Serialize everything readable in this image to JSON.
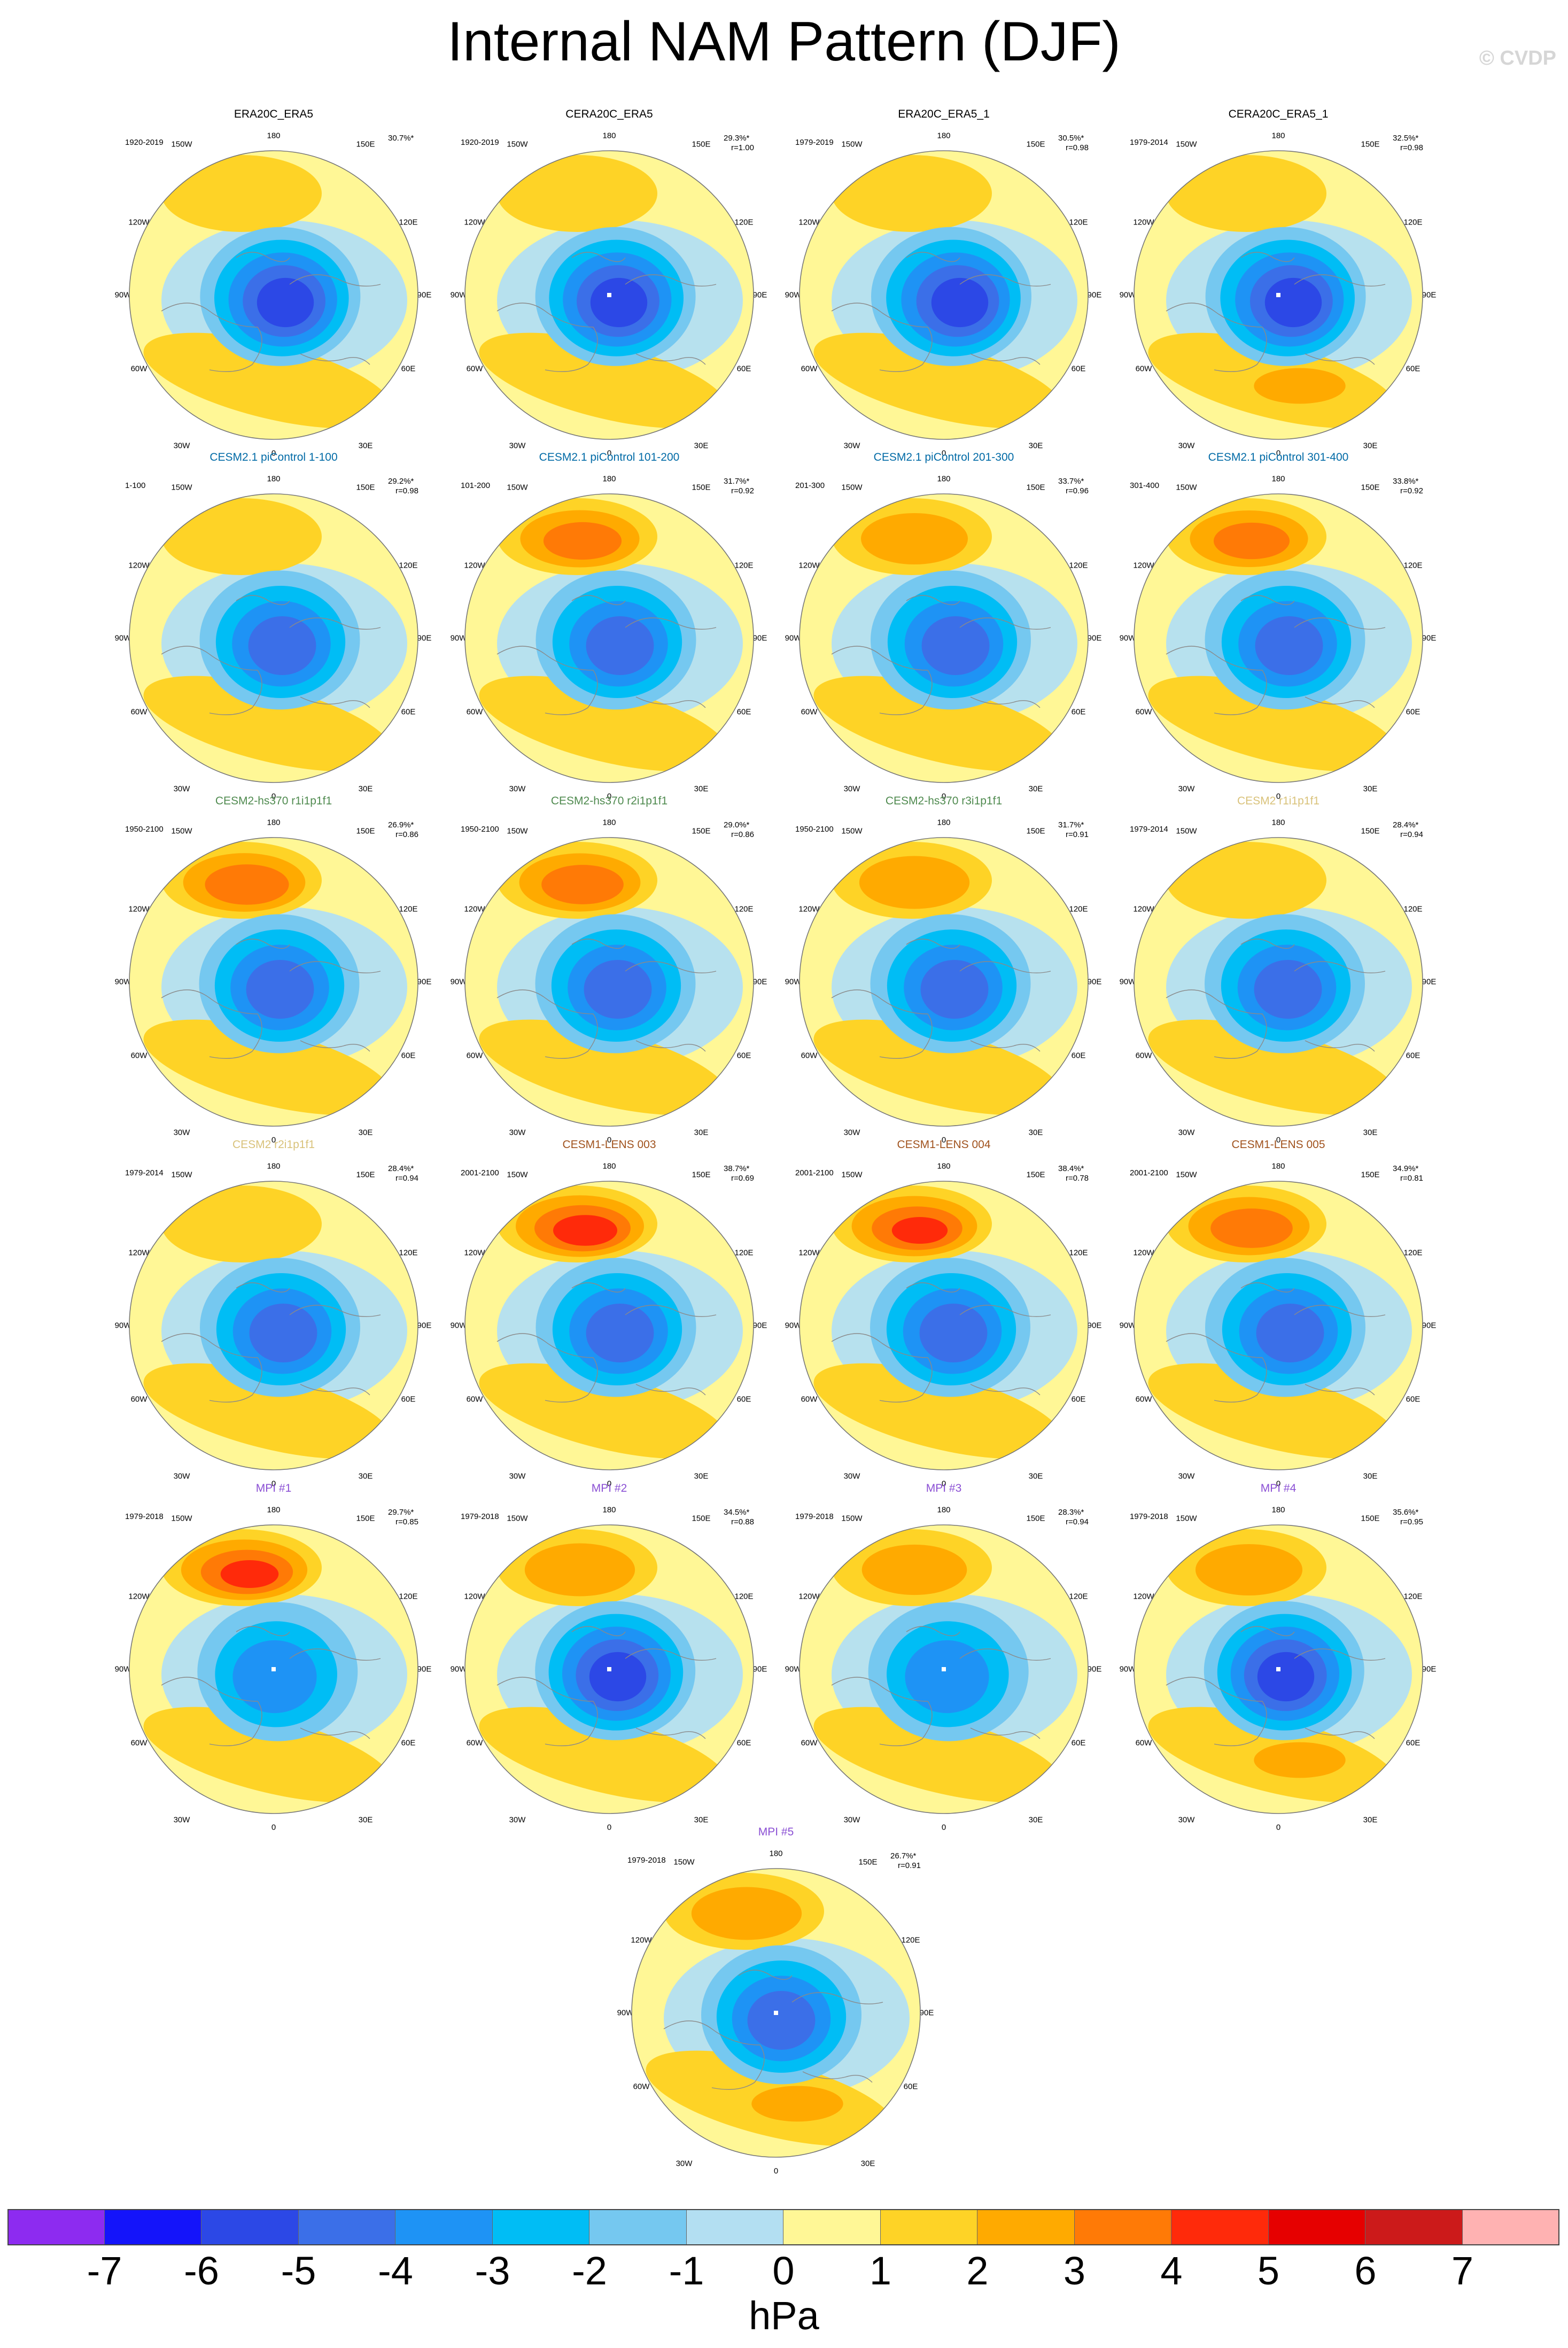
{
  "title": "Internal NAM Pattern (DJF)",
  "watermark": "© CVDP",
  "longitude_labels": {
    "top": "180",
    "bottom": "0",
    "upper_left": "150W",
    "upper_right": "150E",
    "mid_upper_left": "120W",
    "mid_upper_right": "120E",
    "left": "90W",
    "right": "90E",
    "mid_lower_left": "60W",
    "mid_lower_right": "60E",
    "lower_left": "30W",
    "lower_right": "30E"
  },
  "colorbar": {
    "unit": "hPa",
    "ticks": [
      "-7",
      "-6",
      "-5",
      "-4",
      "-3",
      "-2",
      "-1",
      "0",
      "1",
      "2",
      "3",
      "4",
      "5",
      "6",
      "7"
    ],
    "colors": [
      "#8d2bf0",
      "#1414fa",
      "#2c48e6",
      "#3b6fe8",
      "#1e93f5",
      "#00bdf5",
      "#75c8f0",
      "#b3dff2",
      "#fff796",
      "#fed326",
      "#ffaa00",
      "#ff7a06",
      "#ff2a0a",
      "#e60000",
      "#cc1a1a",
      "#ffb2b2"
    ]
  },
  "panels": [
    {
      "title": "ERA20C_ERA5",
      "title_color": "#000000",
      "period": "1920-2019",
      "pct": "30.7%*",
      "r": "",
      "high": 1.4,
      "euro": 1.3,
      "low": -5,
      "low_shift": 12,
      "mark": false
    },
    {
      "title": "CERA20C_ERA5",
      "title_color": "#000000",
      "period": "1920-2019",
      "pct": "29.3%*",
      "r": "r=1.00",
      "high": 1.6,
      "euro": 1.5,
      "low": -5,
      "low_shift": 8,
      "mark": true
    },
    {
      "title": "ERA20C_ERA5_1",
      "title_color": "#000000",
      "period": "1979-2019",
      "pct": "30.5%*",
      "r": "r=0.98",
      "high": 1.4,
      "euro": 1.9,
      "low": -5.5,
      "low_shift": 20,
      "mark": false
    },
    {
      "title": "CERA20C_ERA5_1",
      "title_color": "#000000",
      "period": "1979-2014",
      "pct": "32.5%*",
      "r": "r=0.98",
      "high": 1.5,
      "euro": 2.4,
      "low": -5.5,
      "low_shift": 18,
      "mark": true
    },
    {
      "title": "CESM2.1 piControl 1-100",
      "title_color": "#006aa6",
      "period": "1-100",
      "pct": "29.2%*",
      "r": "r=0.98",
      "high": 1.6,
      "euro": 1.5,
      "low": -4.5,
      "low_shift": 6,
      "mark": false
    },
    {
      "title": "CESM2.1 piControl 101-200",
      "title_color": "#006aa6",
      "period": "101-200",
      "pct": "31.7%*",
      "r": "r=0.92",
      "high": 3.3,
      "euro": 1.4,
      "low": -4.5,
      "low_shift": 10,
      "mark": false
    },
    {
      "title": "CESM2.1 piControl 201-300",
      "title_color": "#006aa6",
      "period": "201-300",
      "pct": "33.7%*",
      "r": "r=0.96",
      "high": 2.4,
      "euro": 1.3,
      "low": -4.5,
      "low_shift": 12,
      "mark": false
    },
    {
      "title": "CESM2.1 piControl 301-400",
      "title_color": "#006aa6",
      "period": "301-400",
      "pct": "33.8%*",
      "r": "r=0.92",
      "high": 3.2,
      "euro": 1.2,
      "low": -4.5,
      "low_shift": 10,
      "mark": false
    },
    {
      "title": "CESM2-hs370 r1i1p1f1",
      "title_color": "#4f8a4f",
      "period": "1950-2100",
      "pct": "26.9%*",
      "r": "r=0.86",
      "high": 3.6,
      "euro": 0.9,
      "low": -4.5,
      "low_shift": 2,
      "mark": false
    },
    {
      "title": "CESM2-hs370 r2i1p1f1",
      "title_color": "#4f8a4f",
      "period": "1950-2100",
      "pct": "29.0%*",
      "r": "r=0.86",
      "high": 3.5,
      "euro": 0.8,
      "low": -4.5,
      "low_shift": 6,
      "mark": false
    },
    {
      "title": "CESM2-hs370 r3i1p1f1",
      "title_color": "#4f8a4f",
      "period": "1950-2100",
      "pct": "31.7%*",
      "r": "r=0.91",
      "high": 2.6,
      "euro": 0.9,
      "low": -4.5,
      "low_shift": 10,
      "mark": false
    },
    {
      "title": "CESM2 r1i1p1f1",
      "title_color": "#d9c27a",
      "period": "1979-2014",
      "pct": "28.4%*",
      "r": "r=0.94",
      "high": 1.6,
      "euro": 1.2,
      "low": -4.2,
      "low_shift": 8,
      "mark": false
    },
    {
      "title": "CESM2 r2i1p1f1",
      "title_color": "#d9c27a",
      "period": "1979-2014",
      "pct": "28.4%*",
      "r": "r=0.94",
      "high": 1.6,
      "euro": 1.2,
      "low": -4.2,
      "low_shift": 8,
      "mark": false
    },
    {
      "title": "CESM1-LENS 003",
      "title_color": "#a0521d",
      "period": "2001-2100",
      "pct": "38.7%*",
      "r": "r=0.69",
      "high": 4.4,
      "euro": 0.8,
      "low": -4.2,
      "low_shift": 10,
      "mark": false
    },
    {
      "title": "CESM1-LENS 004",
      "title_color": "#a0521d",
      "period": "2001-2100",
      "pct": "38.4%*",
      "r": "r=0.78",
      "high": 4.0,
      "euro": 1.1,
      "low": -4.2,
      "low_shift": 8,
      "mark": false
    },
    {
      "title": "CESM1-LENS 005",
      "title_color": "#a0521d",
      "period": "2001-2100",
      "pct": "34.9%*",
      "r": "r=0.81",
      "high": 3.5,
      "euro": 0.9,
      "low": -4.2,
      "low_shift": 12,
      "mark": false
    },
    {
      "title": "MPI #1",
      "title_color": "#8a4fd4",
      "period": "1979-2018",
      "pct": "29.7%*",
      "r": "r=0.85",
      "high": 4.1,
      "euro": 1.5,
      "low": -3.6,
      "low_shift": -8,
      "mark": true
    },
    {
      "title": "MPI #2",
      "title_color": "#8a4fd4",
      "period": "1979-2018",
      "pct": "34.5%*",
      "r": "r=0.88",
      "high": 2.6,
      "euro": 1.8,
      "low": -5,
      "low_shift": 6,
      "mark": true
    },
    {
      "title": "MPI #3",
      "title_color": "#8a4fd4",
      "period": "1979-2018",
      "pct": "28.3%*",
      "r": "r=0.94",
      "high": 2.3,
      "euro": 1.5,
      "low": -3.8,
      "low_shift": -4,
      "mark": true
    },
    {
      "title": "MPI #4",
      "title_color": "#8a4fd4",
      "period": "1979-2018",
      "pct": "35.6%*",
      "r": "r=0.95",
      "high": 2.4,
      "euro": 2.2,
      "low": -5,
      "low_shift": 4,
      "mark": true
    },
    {
      "title": "MPI #5",
      "title_color": "#8a4fd4",
      "period": "1979-2018",
      "pct": "26.7%*",
      "r": "r=0.91",
      "high": 2.6,
      "euro": 2.1,
      "low": -4.6,
      "low_shift": 0,
      "mark": true
    }
  ]
}
